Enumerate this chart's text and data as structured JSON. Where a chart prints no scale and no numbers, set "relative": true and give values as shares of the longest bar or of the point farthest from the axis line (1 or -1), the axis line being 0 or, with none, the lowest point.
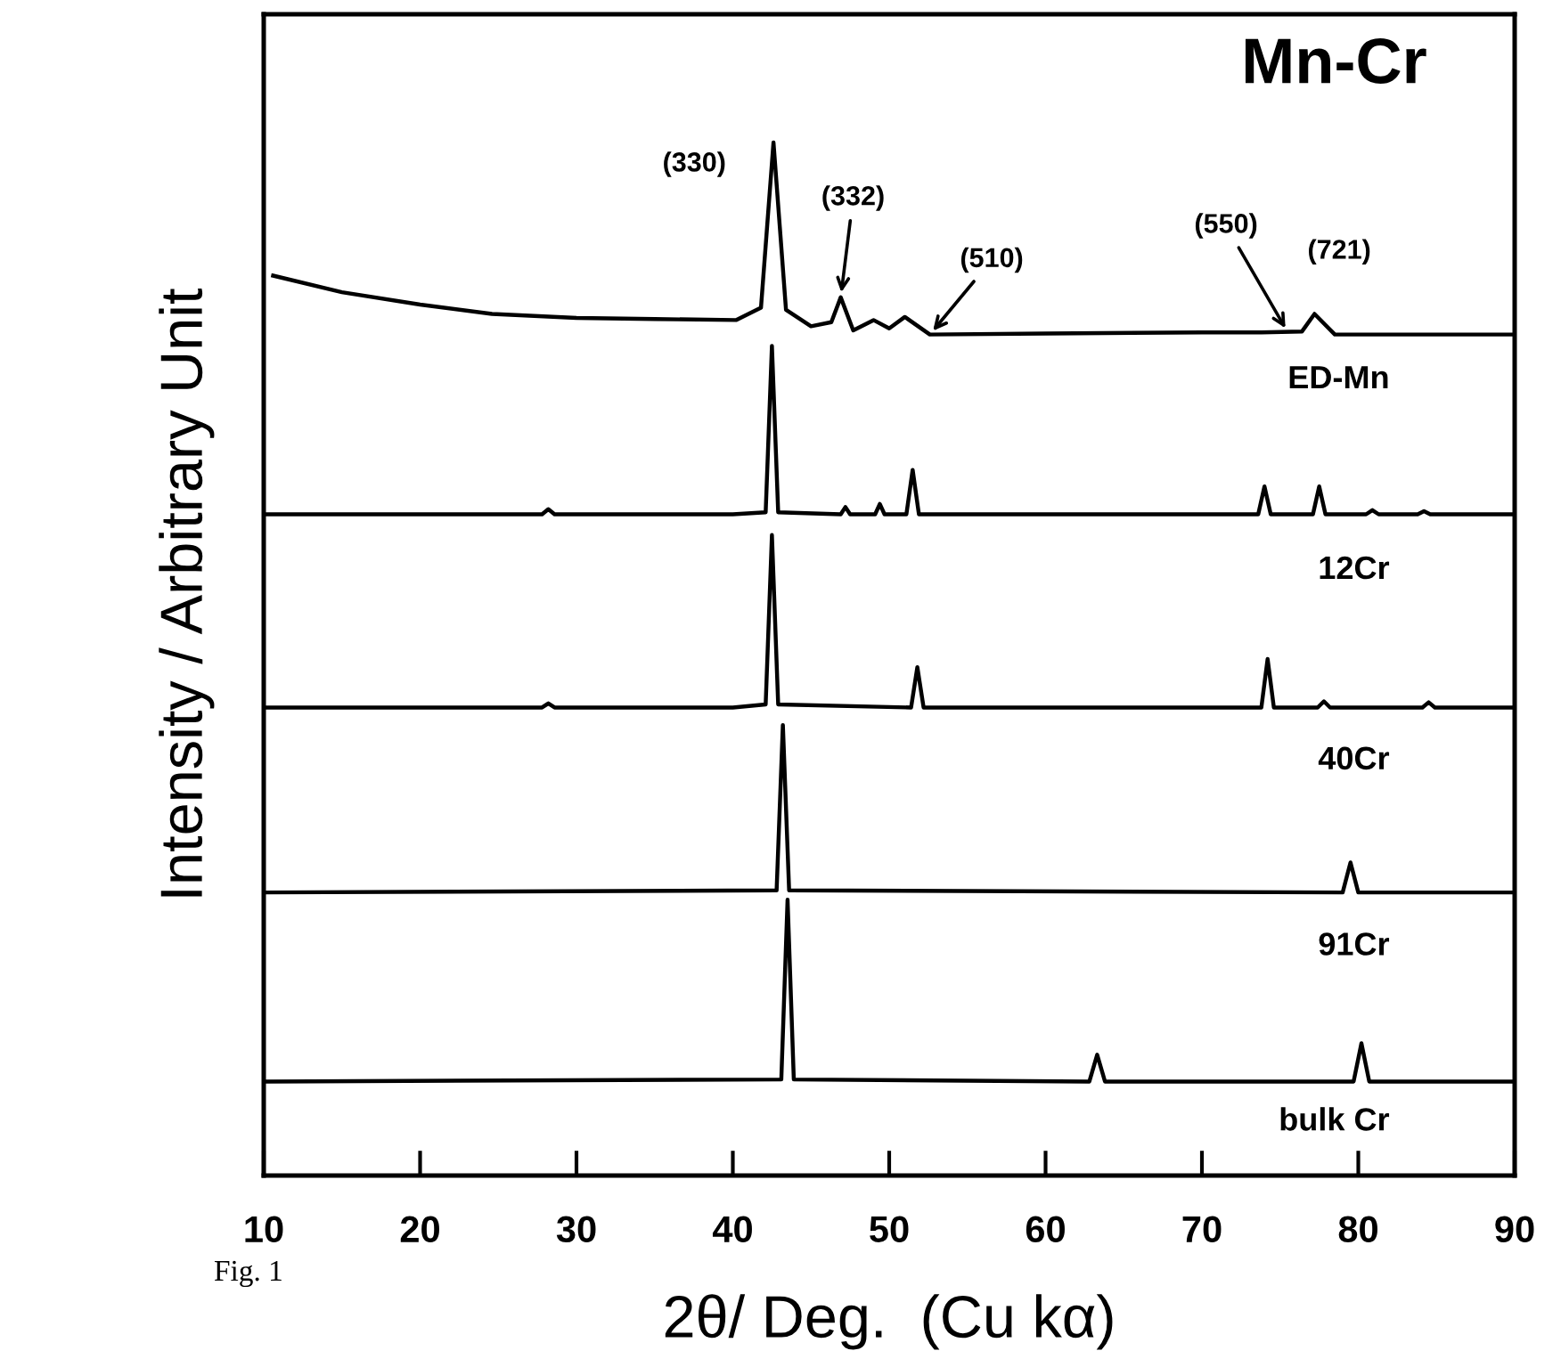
{
  "chart_data": {
    "type": "line",
    "relative": true,
    "xlabel": "2θ/ Deg.  (Cu kα)",
    "ylabel": "Intensity / Arbitrary Unit",
    "xlim": [
      10,
      90
    ],
    "xticks": [
      10,
      20,
      30,
      40,
      50,
      60,
      70,
      80,
      90
    ],
    "tick_labels": "x",
    "grid": false,
    "legend": false,
    "marker": "none",
    "line_style": "solid",
    "series": [
      {
        "color": "#000000",
        "x": [
          10.6,
          15,
          20,
          24.6,
          30,
          35,
          40.2,
          41.8,
          42.6,
          43.4,
          45,
          46.3,
          46.9,
          47.7,
          49.0,
          50.0,
          51.0,
          52.6,
          60,
          70,
          73.8,
          76.4,
          77.2,
          78.5,
          85,
          90
        ],
        "values": [
          0.871,
          0.855,
          0.843,
          0.834,
          0.83,
          0.829,
          0.828,
          0.84,
          1.0,
          0.838,
          0.822,
          0.826,
          0.85,
          0.818,
          0.828,
          0.82,
          0.831,
          0.814,
          0.815,
          0.816,
          0.816,
          0.817,
          0.834,
          0.814,
          0.814,
          0.814
        ]
      },
      {
        "color": "#000000",
        "x": [
          10,
          27.8,
          28.2,
          28.6,
          40,
          42.1,
          42.5,
          42.9,
          46.9,
          47.2,
          47.5,
          49.1,
          49.4,
          49.7,
          51.1,
          51.5,
          51.9,
          73.6,
          74.0,
          74.4,
          77.1,
          77.5,
          77.9,
          80.5,
          80.9,
          81.3,
          83.8,
          84.2,
          84.6,
          90
        ],
        "values": [
          0.64,
          0.64,
          0.645,
          0.64,
          0.64,
          0.642,
          0.803,
          0.642,
          0.64,
          0.647,
          0.64,
          0.64,
          0.65,
          0.64,
          0.64,
          0.683,
          0.64,
          0.64,
          0.667,
          0.64,
          0.64,
          0.667,
          0.64,
          0.64,
          0.644,
          0.64,
          0.64,
          0.643,
          0.64,
          0.64
        ]
      },
      {
        "color": "#000000",
        "x": [
          10,
          27.8,
          28.2,
          28.6,
          40,
          42.1,
          42.5,
          42.9,
          51.4,
          51.8,
          52.2,
          73.8,
          74.2,
          74.6,
          77.4,
          77.8,
          78.2,
          84.1,
          84.5,
          84.9,
          90
        ],
        "values": [
          0.453,
          0.453,
          0.457,
          0.453,
          0.453,
          0.456,
          0.62,
          0.456,
          0.453,
          0.492,
          0.453,
          0.453,
          0.5,
          0.453,
          0.453,
          0.459,
          0.453,
          0.453,
          0.458,
          0.453,
          0.453
        ]
      },
      {
        "color": "#000000",
        "x": [
          10,
          42.8,
          43.2,
          43.6,
          79.0,
          79.5,
          80.0,
          90
        ],
        "values": [
          0.274,
          0.276,
          0.436,
          0.276,
          0.274,
          0.303,
          0.274,
          0.274
        ]
      },
      {
        "color": "#000000",
        "x": [
          10,
          43.1,
          43.5,
          43.9,
          62.8,
          63.3,
          63.8,
          79.7,
          80.2,
          80.7,
          90
        ],
        "values": [
          0.091,
          0.093,
          0.267,
          0.093,
          0.091,
          0.117,
          0.091,
          0.091,
          0.128,
          0.091,
          0.091
        ]
      }
    ],
    "annotations": [
      "Mn-Cr",
      "ED-Mn",
      "12Cr",
      "40Cr",
      "91Cr",
      "bulk Cr",
      "Fig. 1",
      {
        "text": "(330)",
        "x": 42.6,
        "y": 1.0
      },
      {
        "text": "(332)",
        "x": 46.9,
        "y": 0.85
      },
      {
        "text": "(510)",
        "x": 52.6,
        "y": 0.814
      },
      {
        "text": "(550)",
        "x": 75.5,
        "y": 0.816
      },
      {
        "text": "(721)",
        "x": 77.2,
        "y": 0.834
      }
    ]
  }
}
